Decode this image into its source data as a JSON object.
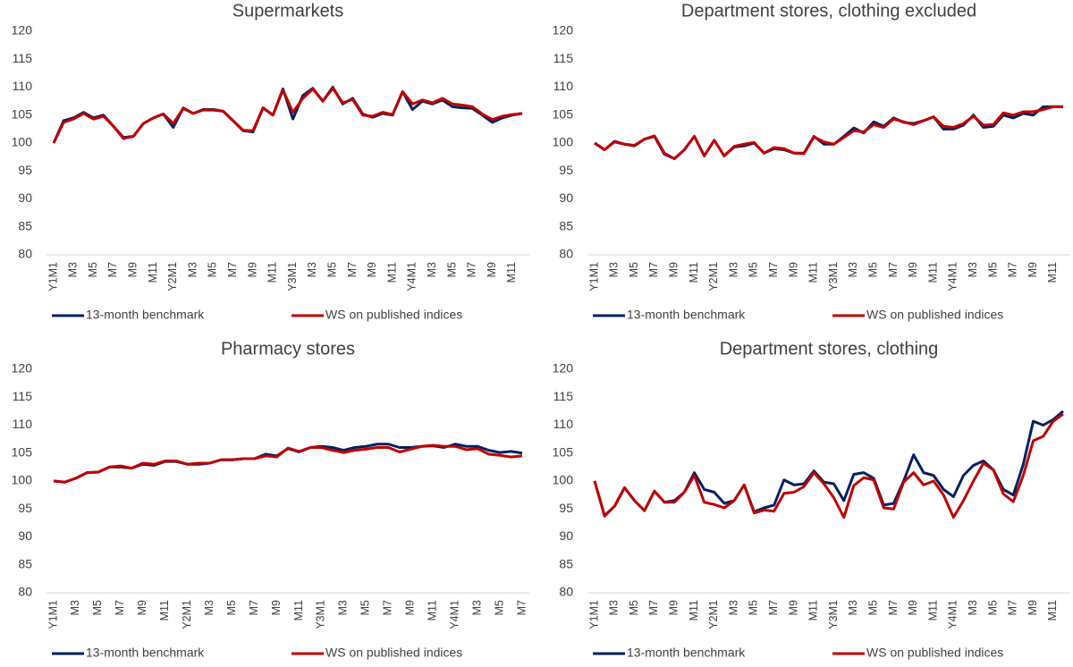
{
  "chart_data": [
    {
      "type": "line",
      "title": "Supermarkets",
      "categories": [
        "Y1M1",
        null,
        "M3",
        null,
        "M5",
        null,
        "M7",
        null,
        "M9",
        null,
        "M11",
        null,
        "Y2M1",
        null,
        "M3",
        null,
        "M5",
        null,
        "M7",
        null,
        "M9",
        null,
        "M11",
        null,
        "Y3M1",
        null,
        "M3",
        null,
        "M5",
        null,
        "M7",
        null,
        "M9",
        null,
        "M11",
        null,
        "Y4M1",
        null,
        "M3",
        null,
        "M5",
        null,
        "M7",
        null,
        "M9",
        null,
        "M11",
        null
      ],
      "series": [
        {
          "name": "13-month benchmark",
          "color": "#002060",
          "values": [
            100,
            104,
            104.5,
            105.5,
            104.5,
            105,
            103,
            101,
            101.2,
            103.5,
            104.5,
            105.2,
            102.8,
            106.3,
            105.3,
            106,
            106,
            105.7,
            104,
            102.2,
            102,
            106.3,
            105,
            109.7,
            104.3,
            108.5,
            109.8,
            107.5,
            110,
            107,
            108,
            105.2,
            104.6,
            105.3,
            105,
            109.2,
            106,
            107.5,
            107,
            107.7,
            106.5,
            106.3,
            106.2,
            105,
            103.7,
            104.5,
            105,
            105.3
          ]
        },
        {
          "name": "WS on published indices",
          "color": "#c00000",
          "values": [
            100,
            103.7,
            104.3,
            105.3,
            104.3,
            104.8,
            103,
            100.8,
            101.2,
            103.5,
            104.5,
            105.2,
            103.5,
            106.2,
            105.3,
            105.9,
            105.9,
            105.7,
            104,
            102.3,
            102.2,
            106.3,
            105,
            109.5,
            105.5,
            108,
            109.7,
            107.5,
            109.8,
            107.2,
            107.8,
            105,
            104.8,
            105.5,
            105.1,
            109.2,
            107,
            107.7,
            107.2,
            108,
            107,
            106.8,
            106.5,
            105.2,
            104.2,
            104.8,
            105.1,
            105.3
          ]
        }
      ],
      "ylim": [
        80,
        120
      ],
      "yticks": [
        80,
        85,
        90,
        95,
        100,
        105,
        110,
        115,
        120
      ],
      "grid": false
    },
    {
      "type": "line",
      "title": "Department stores, clothing excluded",
      "categories": [
        "Y1M1",
        null,
        "M3",
        null,
        "M5",
        null,
        "M7",
        null,
        "M9",
        null,
        "M11",
        null,
        "Y2M1",
        null,
        "M3",
        null,
        "M5",
        null,
        "M7",
        null,
        "M9",
        null,
        "M11",
        null,
        "Y3M1",
        null,
        "M3",
        null,
        "M5",
        null,
        "M7",
        null,
        "M9",
        null,
        "M11",
        null,
        "Y4M1",
        null,
        "M3",
        null,
        "M5",
        null,
        "M7",
        null,
        "M9",
        null,
        "M11",
        null
      ],
      "series": [
        {
          "name": "13-month benchmark",
          "color": "#002060",
          "values": [
            100,
            98.8,
            100.3,
            99.8,
            99.5,
            100.7,
            101.2,
            98,
            97.2,
            98.8,
            101.2,
            97.7,
            100.5,
            97.7,
            99.3,
            99.5,
            100,
            98.2,
            99,
            98.8,
            98.2,
            98.2,
            101.2,
            99.8,
            99.8,
            101.2,
            102.7,
            101.8,
            103.8,
            103,
            104.5,
            103.7,
            103.5,
            104,
            104.7,
            102.5,
            102.5,
            103.2,
            105,
            102.8,
            103,
            105,
            104.5,
            105.3,
            105,
            106.5,
            106.5,
            106.5
          ]
        },
        {
          "name": "WS on published indices",
          "color": "#c00000",
          "values": [
            100,
            98.8,
            100.2,
            99.8,
            99.6,
            100.7,
            101.3,
            98.2,
            97.2,
            98.8,
            101.2,
            97.7,
            100.5,
            97.7,
            99.4,
            99.8,
            100.1,
            98.2,
            99.2,
            99,
            98.2,
            98.1,
            101.1,
            100.2,
            99.8,
            101,
            102.2,
            102,
            103.3,
            102.8,
            104.3,
            103.8,
            103.3,
            104,
            104.7,
            103,
            102.8,
            103.5,
            104.8,
            103.2,
            103.3,
            105.4,
            105,
            105.6,
            105.6,
            106,
            106.5,
            106.5
          ]
        }
      ],
      "ylim": [
        80,
        120
      ],
      "yticks": [
        80,
        85,
        90,
        95,
        100,
        105,
        110,
        115,
        120
      ],
      "grid": false
    },
    {
      "type": "line",
      "title": "Pharmacy stores",
      "categories": [
        "Y1M1",
        null,
        "M3",
        null,
        "M5",
        null,
        "M7",
        null,
        "M9",
        null,
        "M11",
        null,
        "Y2M1",
        null,
        "M3",
        null,
        "M5",
        null,
        "M7",
        null,
        "M9",
        null,
        "M11",
        null,
        "Y3M1",
        null,
        "M3",
        null,
        "M5",
        null,
        "M7",
        null,
        "M9",
        null,
        "M11",
        null,
        "Y4M1",
        null,
        "M3",
        null,
        "M5",
        null,
        "M7"
      ],
      "series": [
        {
          "name": "13-month benchmark",
          "color": "#002060",
          "values": [
            100,
            99.8,
            100.5,
            101.5,
            101.6,
            102.5,
            102.5,
            102.3,
            103,
            102.8,
            103.5,
            103.5,
            103,
            103,
            103.2,
            103.8,
            103.8,
            104,
            104,
            104.8,
            104.5,
            105.8,
            105.2,
            106,
            106.2,
            106,
            105.5,
            106,
            106.2,
            106.6,
            106.6,
            106,
            106,
            106.2,
            106.3,
            106,
            106.6,
            106.2,
            106.2,
            105.5,
            105.1,
            105.3,
            105
          ]
        },
        {
          "name": "WS on published indices",
          "color": "#c00000",
          "values": [
            100,
            99.8,
            100.5,
            101.5,
            101.6,
            102.5,
            102.7,
            102.3,
            103.2,
            103,
            103.6,
            103.6,
            103,
            103.2,
            103.2,
            103.8,
            103.8,
            104,
            104,
            104.5,
            104.3,
            105.9,
            105.3,
            106,
            106,
            105.5,
            105.1,
            105.5,
            105.7,
            106,
            106,
            105.2,
            105.7,
            106.2,
            106.4,
            106.2,
            106.2,
            105.6,
            105.8,
            104.8,
            104.6,
            104.3,
            104.5
          ]
        }
      ],
      "ylim": [
        80,
        120
      ],
      "yticks": [
        80,
        85,
        90,
        95,
        100,
        105,
        110,
        115,
        120
      ],
      "grid": false
    },
    {
      "type": "line",
      "title": "Department stores, clothing",
      "categories": [
        "Y1M1",
        null,
        "M3",
        null,
        "M5",
        null,
        "M7",
        null,
        "M9",
        null,
        "M11",
        null,
        "Y2M1",
        null,
        "M3",
        null,
        "M5",
        null,
        "M7",
        null,
        "M9",
        null,
        "M11",
        null,
        "Y3M1",
        null,
        "M3",
        null,
        "M5",
        null,
        "M7",
        null,
        "M9",
        null,
        "M11",
        null,
        "Y4M1",
        null,
        "M3",
        null,
        "M5",
        null,
        "M7",
        null,
        "M9",
        null,
        "M11",
        null
      ],
      "series": [
        {
          "name": "13-month benchmark",
          "color": "#002060",
          "values": [
            100,
            93.8,
            95.5,
            98.8,
            96.5,
            94.7,
            98.2,
            96.2,
            96.5,
            98,
            101.5,
            98.5,
            98,
            96,
            96.5,
            99.3,
            94.5,
            95.2,
            95.7,
            100.2,
            99.3,
            99.5,
            101.8,
            99.8,
            99.5,
            96.5,
            101.2,
            101.5,
            100.5,
            95.7,
            96,
            100,
            104.7,
            101.5,
            101,
            98.5,
            97.2,
            101,
            102.8,
            103.6,
            102,
            98.5,
            97.5,
            103,
            110.7,
            110,
            111,
            112.5
          ]
        },
        {
          "name": "WS on published indices",
          "color": "#c00000",
          "values": [
            100,
            93.7,
            95.5,
            98.8,
            96.5,
            94.7,
            98.2,
            96.2,
            96.2,
            98,
            101,
            96.2,
            95.8,
            95.2,
            96.5,
            99.3,
            94.3,
            94.8,
            94.6,
            97.8,
            98,
            99,
            101.5,
            99.5,
            97,
            93.5,
            99.2,
            100.6,
            100.2,
            95.2,
            95,
            99.8,
            101.5,
            99.3,
            100,
            97.5,
            93.5,
            96.5,
            100,
            103.2,
            102,
            97.7,
            96.3,
            101,
            107.2,
            108,
            110.7,
            112
          ]
        }
      ],
      "ylim": [
        80,
        120
      ],
      "yticks": [
        80,
        85,
        90,
        95,
        100,
        105,
        110,
        115,
        120
      ],
      "grid": false
    }
  ]
}
